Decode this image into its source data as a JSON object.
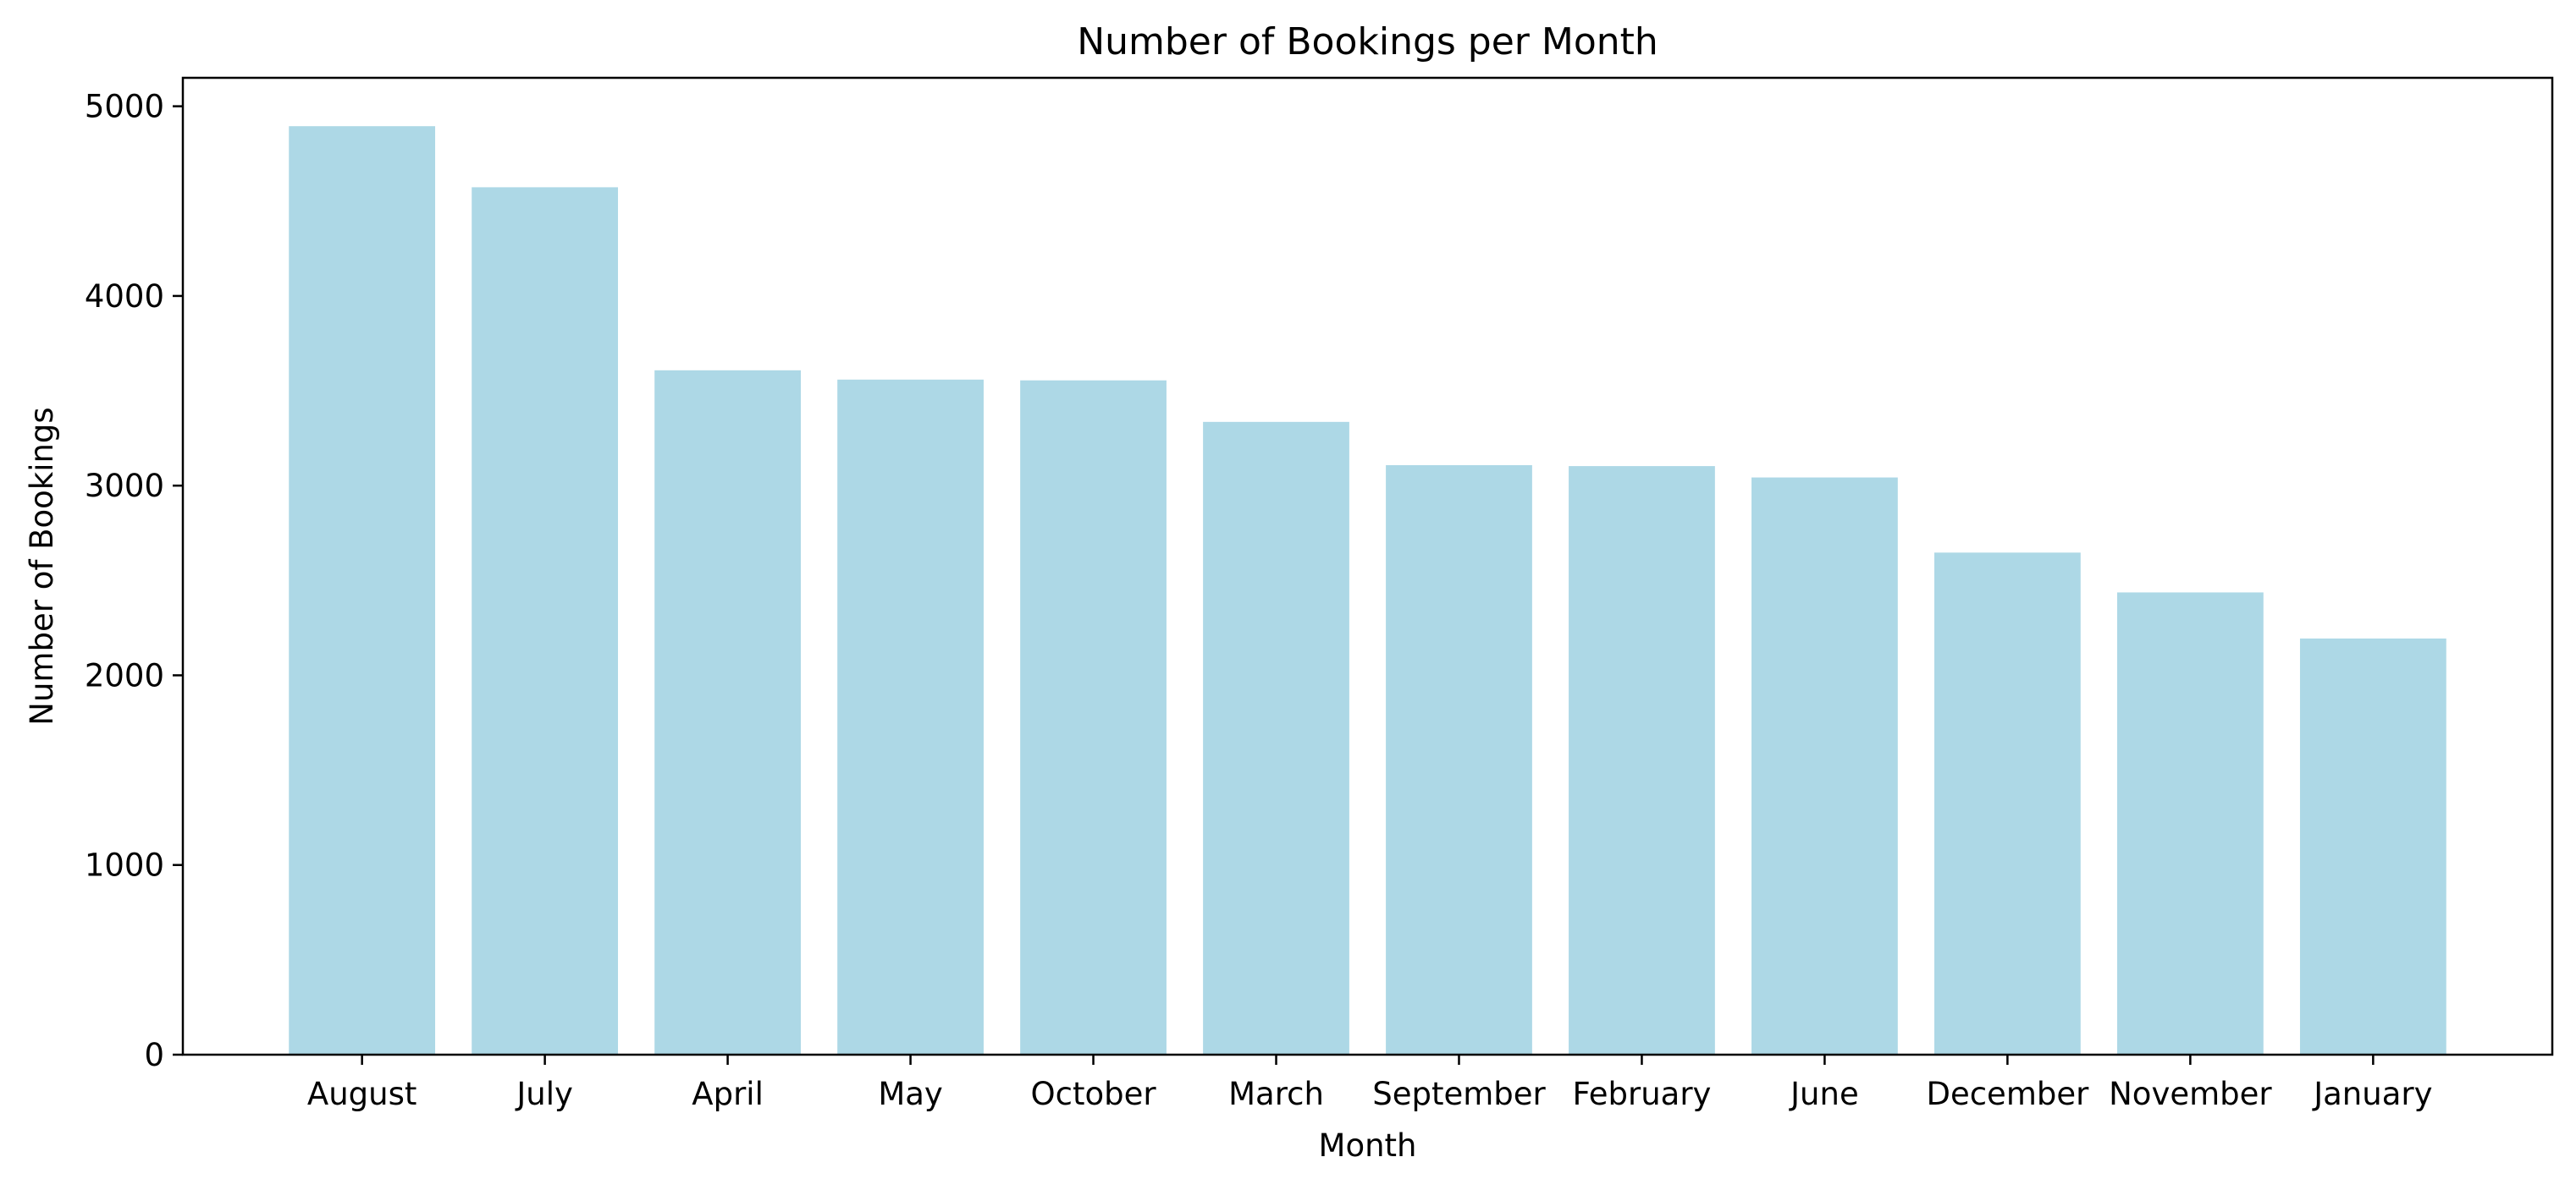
{
  "chart_data": {
    "type": "bar",
    "title": "Number of Bookings per Month",
    "xlabel": "Month",
    "ylabel": "Number of Bookings",
    "categories": [
      "August",
      "July",
      "April",
      "May",
      "October",
      "March",
      "September",
      "February",
      "June",
      "December",
      "November",
      "January"
    ],
    "values": [
      4895,
      4573,
      3608,
      3559,
      3555,
      3336,
      3108,
      3103,
      3043,
      2647,
      2437,
      2194
    ],
    "ylim": [
      0,
      5150
    ],
    "yticks": [
      0,
      1000,
      2000,
      3000,
      4000,
      5000
    ],
    "bar_color": "#add8e6",
    "grid": false
  }
}
